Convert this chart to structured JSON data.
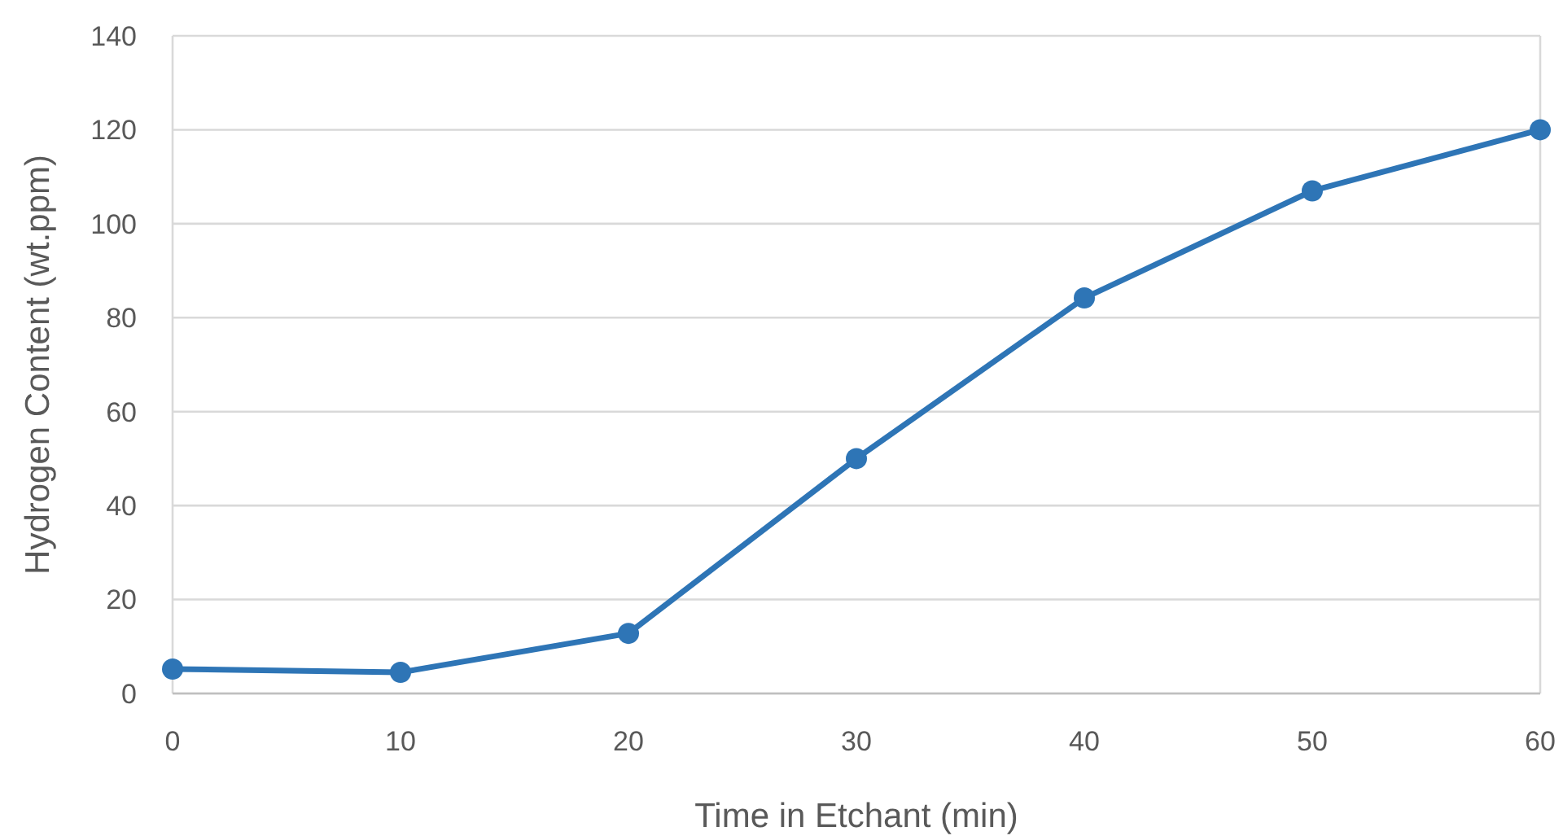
{
  "chart_data": {
    "type": "line",
    "xlabel": "Time in Etchant (min)",
    "ylabel": "Hydrogen Content (wt.ppm)",
    "x": [
      0,
      10,
      20,
      30,
      40,
      50,
      60
    ],
    "series": [
      {
        "color": "#2e75b6",
        "values": [
          5.2,
          4.5,
          12.8,
          50,
          84.2,
          107,
          120
        ]
      }
    ],
    "xlim": [
      0,
      60
    ],
    "xticks": [
      0,
      10,
      20,
      30,
      40,
      50,
      60
    ],
    "ylim": [
      0,
      140
    ],
    "yticks": [
      0,
      20,
      40,
      60,
      80,
      100,
      120,
      140
    ],
    "grid": "y",
    "marker": "circle",
    "line_style": "solid"
  }
}
